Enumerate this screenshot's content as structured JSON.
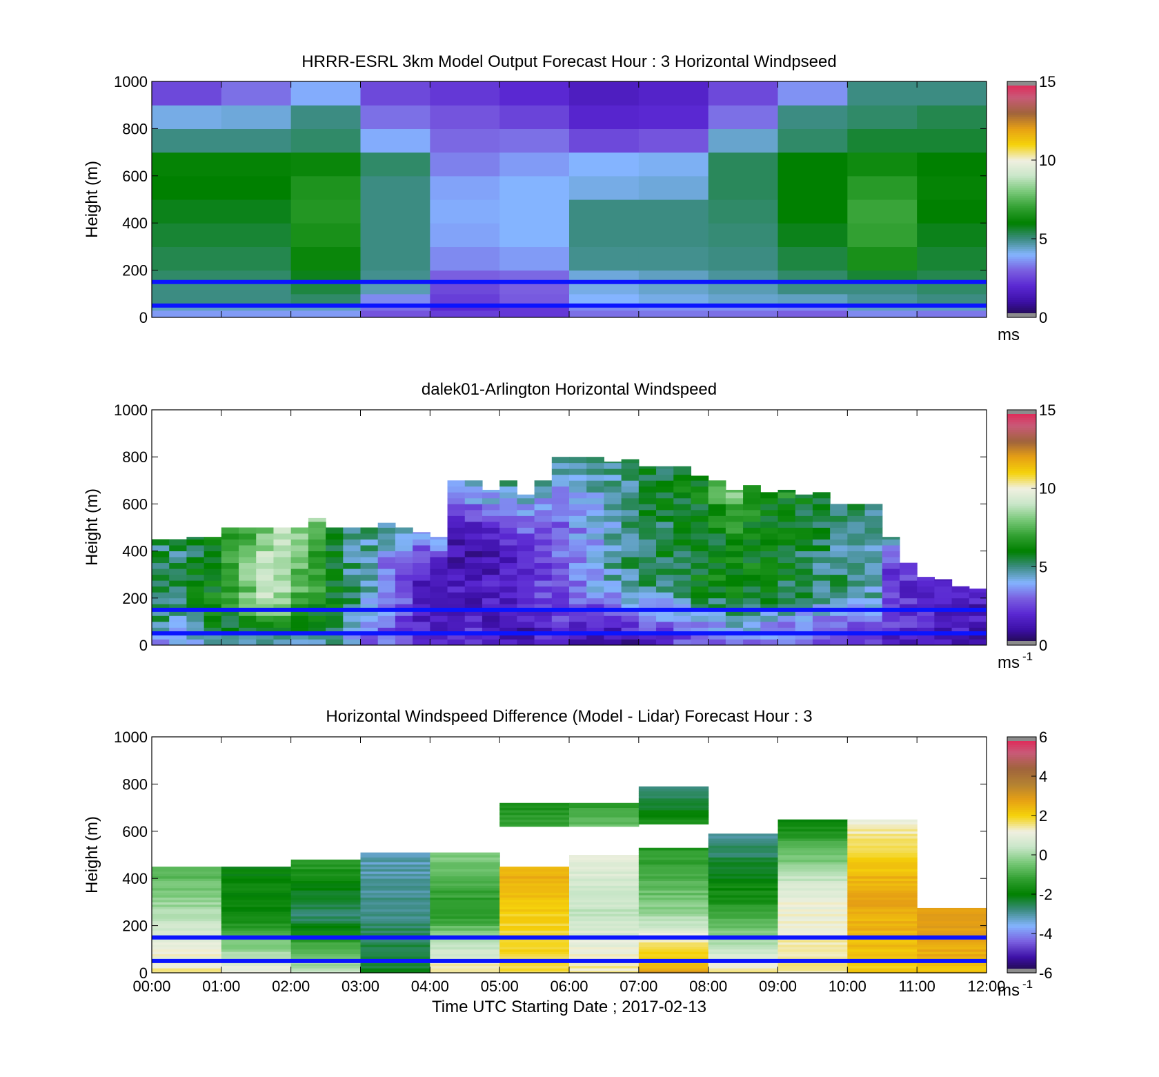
{
  "figure": {
    "x_axis": {
      "label": "Time UTC  Starting Date ; 2017-02-13",
      "ticks": [
        "00:00",
        "01:00",
        "02:00",
        "03:00",
        "04:00",
        "05:00",
        "06:00",
        "07:00",
        "08:00",
        "09:00",
        "10:00",
        "11:00",
        "12:00"
      ],
      "range_hours": [
        0,
        12
      ]
    },
    "reference_lines_height_m": [
      150,
      50
    ],
    "reference_line_color": "#0a14ff"
  },
  "colormaps": {
    "windspeed": [
      "#1c0a3c",
      "#3c0fa6",
      "#5a28d2",
      "#7a5fe0",
      "#84b4ff",
      "#3c8c82",
      "#008000",
      "#32a032",
      "#78c878",
      "#c8e6c8",
      "#f0f0e0",
      "#f5d20a",
      "#e6a014",
      "#a0643c",
      "#c85a78",
      "#e61e50"
    ],
    "difference": [
      "#1c0a3c",
      "#3c0fa6",
      "#7a5fe0",
      "#84b4ff",
      "#3c8c82",
      "#008000",
      "#32a032",
      "#78c878",
      "#c8e6c8",
      "#f0f0e0",
      "#f5d20a",
      "#e6a014",
      "#b48232",
      "#a0643c",
      "#c85a78",
      "#e61e50"
    ]
  },
  "chart_data": [
    {
      "type": "heatmap",
      "title": "HRRR-ESRL 3km Model Output   Forecast Hour : 3 Horizontal Windpseed",
      "ylabel": "Height (m)",
      "ylim": [
        0,
        1000
      ],
      "yticks": [
        "0",
        "200",
        "400",
        "600",
        "800",
        "1000"
      ],
      "xlim": [
        0,
        12
      ],
      "colorbar": {
        "range": [
          0,
          15
        ],
        "ticks": [
          "0",
          "5",
          "10",
          "15"
        ],
        "unit_label": "ms",
        "unit_superscript": ""
      },
      "column_width_hours": 1,
      "row_edges_m": [
        0,
        30,
        60,
        100,
        150,
        200,
        300,
        400,
        500,
        600,
        700,
        800,
        900,
        1000
      ],
      "values_ms": [
        [
          3.7,
          3.7,
          3.7,
          2.8,
          2.4,
          2.3,
          3.2,
          3.3,
          3.2,
          3.0,
          3.5,
          3.3
        ],
        [
          4.5,
          4.5,
          4.5,
          3.2,
          2.0,
          2.3,
          3.5,
          3.6,
          3.6,
          3.5,
          4.5,
          4.5
        ],
        [
          5.0,
          5.0,
          5.2,
          3.5,
          2.4,
          2.9,
          4.0,
          4.2,
          4.4,
          4.5,
          4.8,
          5.0
        ],
        [
          5.0,
          5.0,
          5.5,
          4.6,
          2.6,
          3.0,
          4.2,
          4.4,
          4.6,
          5.0,
          5.0,
          5.2
        ],
        [
          5.2,
          5.2,
          5.8,
          4.9,
          3.0,
          3.1,
          4.3,
          4.5,
          4.8,
          5.2,
          5.6,
          5.4
        ],
        [
          5.4,
          5.4,
          6.2,
          5.0,
          3.5,
          3.7,
          4.9,
          4.9,
          5.0,
          5.5,
          6.5,
          5.6
        ],
        [
          5.6,
          5.6,
          6.5,
          5.0,
          3.8,
          4.0,
          5.0,
          5.0,
          5.1,
          5.8,
          7.0,
          5.8
        ],
        [
          5.8,
          5.8,
          6.7,
          5.0,
          3.9,
          4.0,
          5.0,
          5.0,
          5.2,
          6.0,
          7.1,
          6.0
        ],
        [
          6.0,
          6.0,
          6.6,
          5.0,
          3.8,
          4.0,
          4.2,
          4.3,
          5.3,
          6.0,
          6.8,
          6.1
        ],
        [
          6.1,
          6.1,
          6.2,
          5.2,
          3.4,
          3.7,
          4.0,
          4.1,
          5.3,
          6.0,
          6.3,
          6.0
        ],
        [
          5.0,
          5.0,
          5.2,
          3.9,
          3.1,
          3.2,
          2.6,
          2.8,
          4.4,
          5.2,
          5.6,
          5.6
        ],
        [
          4.2,
          4.3,
          5.0,
          3.2,
          2.8,
          2.5,
          1.9,
          2.0,
          3.2,
          5.0,
          5.2,
          5.4
        ],
        [
          2.6,
          3.2,
          3.9,
          2.6,
          2.3,
          2.0,
          1.6,
          1.8,
          2.6,
          3.6,
          5.0,
          5.0
        ]
      ]
    },
    {
      "type": "heatmap",
      "title": "dalek01-Arlington  Horizontal Windspeed",
      "ylabel": "Height (m)",
      "ylim": [
        0,
        1000
      ],
      "yticks": [
        "0",
        "200",
        "400",
        "600",
        "800",
        "1000"
      ],
      "xlim": [
        0,
        12
      ],
      "colorbar": {
        "range": [
          0,
          15
        ],
        "ticks": [
          "0",
          "5",
          "10",
          "15"
        ],
        "unit_label": "ms",
        "unit_superscript": "-1"
      },
      "column_width_hours": 0.25,
      "row_height_m": 25,
      "note_values": "top of measured data per quarter hour (m) and representative windspeed (ms-1) bands low/mid/upper",
      "top_m": [
        450,
        450,
        460,
        460,
        500,
        500,
        500,
        500,
        500,
        540,
        500,
        500,
        500,
        520,
        500,
        480,
        460,
        700,
        700,
        660,
        700,
        640,
        700,
        800,
        800,
        800,
        780,
        790,
        760,
        760,
        760,
        720,
        700,
        660,
        680,
        650,
        660,
        640,
        650,
        600,
        600,
        600,
        460,
        350,
        290,
        280,
        250,
        240
      ],
      "low_ms": [
        4.0,
        3.5,
        4.5,
        4.8,
        5.0,
        4.5,
        4.8,
        5.0,
        4.5,
        4.2,
        4.5,
        3.8,
        3.0,
        2.8,
        2.5,
        2.0,
        1.5,
        1.8,
        2.2,
        1.8,
        1.5,
        1.2,
        1.6,
        2.0,
        1.5,
        1.2,
        1.0,
        1.4,
        1.8,
        2.0,
        2.5,
        2.8,
        3.0,
        3.5,
        3.3,
        3.0,
        2.8,
        2.5,
        2.4,
        2.2,
        2.0,
        2.0,
        1.8,
        1.6,
        1.5,
        1.4,
        1.3,
        1.2
      ],
      "mid_ms": [
        5.5,
        5.2,
        5.8,
        6.2,
        6.8,
        8.0,
        9.0,
        8.5,
        7.5,
        7.0,
        6.0,
        5.0,
        4.5,
        3.5,
        2.6,
        1.8,
        1.5,
        1.4,
        1.3,
        1.6,
        1.8,
        2.2,
        2.6,
        3.0,
        3.5,
        4.0,
        4.6,
        5.0,
        5.2,
        5.4,
        5.6,
        5.8,
        6.0,
        6.2,
        6.0,
        5.8,
        5.6,
        5.4,
        5.2,
        5.0,
        4.8,
        4.6,
        2.5,
        2.2,
        2.0,
        1.8,
        1.6,
        1.5
      ],
      "upper_ms": [
        5.0,
        5.0,
        5.5,
        6.0,
        6.5,
        7.0,
        7.5,
        9.0,
        8.0,
        8.5,
        5.8,
        5.0,
        5.0,
        4.8,
        4.5,
        4.2,
        4.0,
        5.0,
        5.0,
        4.5,
        5.0,
        4.5,
        4.8,
        5.0,
        5.0,
        4.8,
        4.8,
        5.2,
        5.5,
        5.8,
        6.0,
        6.3,
        7.5,
        8.0,
        7.0,
        6.5,
        6.5,
        6.0,
        6.0,
        5.5,
        5.5,
        5.2,
        4.8,
        2.8,
        2.5,
        2.2,
        2.0,
        1.8
      ]
    },
    {
      "type": "heatmap",
      "title": "Horizontal Windspeed Difference (Model - Lidar) Forecast Hour : 3",
      "ylabel": "Height (m)",
      "ylim": [
        0,
        1000
      ],
      "yticks": [
        "0",
        "200",
        "400",
        "600",
        "800",
        "1000"
      ],
      "xlim": [
        0,
        12
      ],
      "colorbar": {
        "range": [
          -6,
          6
        ],
        "ticks": [
          "-6",
          "-4",
          "-2",
          "0",
          "2",
          "4",
          "6"
        ],
        "unit_label": "ms",
        "unit_superscript": "-1"
      },
      "column_width_hours": 1,
      "columns": [
        {
          "top_m": 450,
          "bottom_value": 1.5,
          "mid_value": 0.3,
          "top_value": -1.0
        },
        {
          "top_m": 450,
          "bottom_value": 1.2,
          "mid_value": -1.8,
          "top_value": -2.0
        },
        {
          "top_m": 480,
          "bottom_value": 0.5,
          "mid_value": -2.8,
          "top_value": -1.2
        },
        {
          "top_m": 510,
          "bottom_value": -2.2,
          "mid_value": -2.8,
          "top_value": -3.2
        },
        {
          "top_m": 510,
          "bottom_value": 1.6,
          "mid_value": -1.5,
          "top_value": -0.3
        },
        {
          "top_m": 450,
          "bottom_value": 1.8,
          "mid_value": 2.0,
          "top_value": 2.6
        },
        {
          "top_m": 500,
          "bottom_value": 1.5,
          "mid_value": 0.4,
          "top_value": 1.0
        },
        {
          "top_m": 530,
          "bottom_value": 2.8,
          "mid_value": -0.2,
          "top_value": -1.5
        },
        {
          "top_m": 590,
          "bottom_value": 1.4,
          "mid_value": -1.5,
          "top_value": -3.0
        },
        {
          "top_m": 650,
          "bottom_value": 1.5,
          "mid_value": 1.0,
          "top_value": -2.0
        },
        {
          "top_m": 650,
          "bottom_value": 2.0,
          "mid_value": 2.8,
          "top_value": 1.2
        },
        {
          "top_m": 275,
          "bottom_value": 2.2,
          "mid_value": 2.8,
          "top_value": 2.8
        }
      ],
      "upper_blocks": [
        {
          "x0": 5,
          "x1": 6,
          "y0": 620,
          "y1": 720,
          "bottom_value": -1.2,
          "top_value": -1.6
        },
        {
          "x0": 6,
          "x1": 7,
          "y0": 620,
          "y1": 720,
          "bottom_value": -0.6,
          "top_value": -1.4
        },
        {
          "x0": 7,
          "x1": 8,
          "y0": 630,
          "y1": 790,
          "bottom_value": -1.6,
          "top_value": -3.0
        }
      ]
    }
  ]
}
